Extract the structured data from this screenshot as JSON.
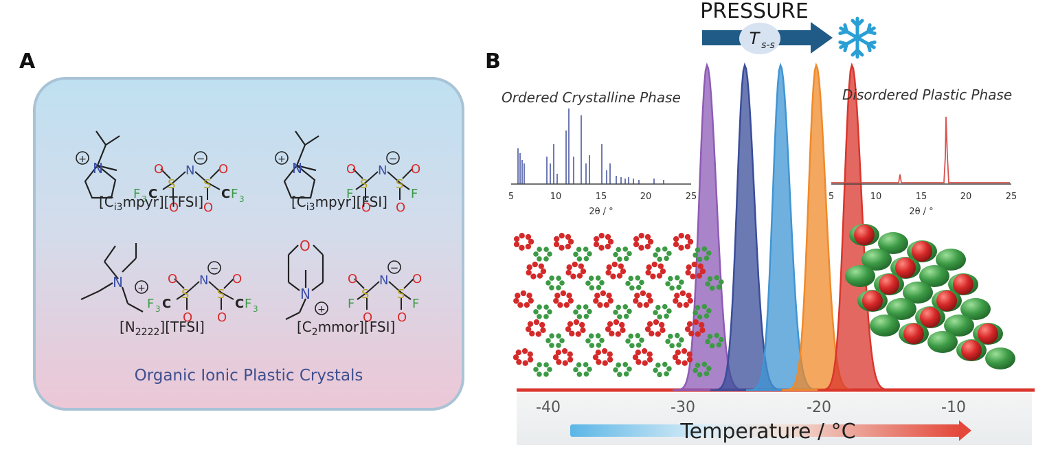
{
  "panel_a": {
    "letter": "A",
    "caption": "Organic Ionic Plastic Crystals",
    "compounds": [
      {
        "pre": "[C",
        "sub": "i3",
        "post": "mpyr][TFSI]"
      },
      {
        "pre": "[C",
        "sub": "i3",
        "post": "mpyr][FSI]"
      },
      {
        "pre": "[N",
        "sub": "2222",
        "post": "][TFSI]"
      },
      {
        "pre": "[C",
        "sub": "2",
        "post": "mmor][FSI]"
      }
    ],
    "atoms": {
      "N": "N",
      "O": "O",
      "S": "S",
      "F": "F",
      "C": "C",
      "cf3": "CF",
      "f3c": "F",
      "three": "3",
      "plus": "+",
      "minus": "−"
    }
  },
  "panel_b": {
    "letter": "B",
    "pressure_label": "PRESSURE",
    "transition_symbol": "T",
    "transition_sub": "s-s",
    "icon": "snowflake-icon",
    "ordered_title": "Ordered Crystalline Phase",
    "disordered_title": "Disordered Plastic Phase",
    "xrd_xlabel": "2θ / °",
    "xrd_ticks": [
      "5",
      "10",
      "15",
      "20",
      "25"
    ],
    "temp_axis_label": "Temperature / °C",
    "temp_ticks": [
      "-40",
      "-30",
      "-20",
      "-10"
    ],
    "colors": {
      "arrow": "#1f5b86",
      "purple": "#8e5bb5",
      "navy": "#3a4d9a",
      "blue": "#3f95d4",
      "orange": "#ef8a2a",
      "red": "#d9362c",
      "ordered_xrd": "#4a58a0",
      "disordered_xrd": "#d9534f",
      "green": "#3c9a45"
    }
  }
}
